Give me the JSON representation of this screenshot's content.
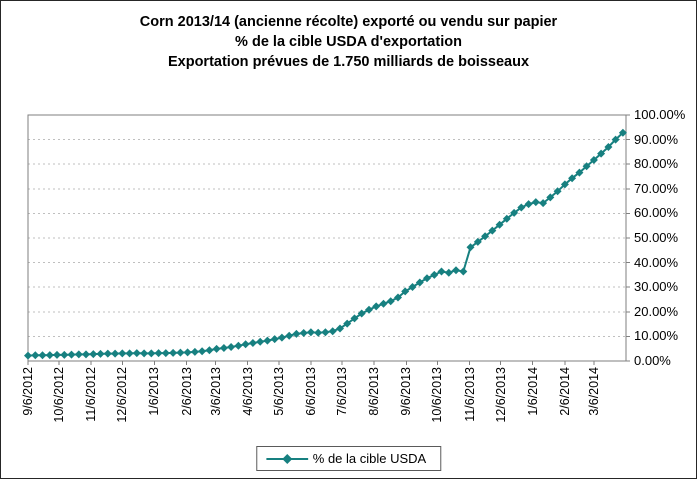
{
  "title": {
    "line1": "Corn 2013/14 (ancienne récolte) exporté ou vendu sur papier",
    "line2": "% de la cible USDA d'exportation",
    "line3": "Exportation prévues de 1.750 milliards de boisseaux"
  },
  "legend": {
    "label": "% de la cible USDA"
  },
  "colors": {
    "series": "#178080",
    "grid": "#bfbfbf",
    "axis": "#7f7f7f",
    "text": "#000000",
    "background": "#ffffff"
  },
  "chart_data": {
    "type": "line",
    "title": "Corn 2013/14 (ancienne récolte) exporté ou vendu sur papier",
    "subtitle1": "% de la cible USDA d'exportation",
    "subtitle2": "Exportation prévues de 1.750 milliards de boisseaux",
    "grid": "horizontal-dotted",
    "legend_position": "bottom-center",
    "y_axis_side": "right",
    "ylim": [
      0,
      100
    ],
    "y_ticks": [
      0,
      10,
      20,
      30,
      40,
      50,
      60,
      70,
      80,
      90,
      100
    ],
    "y_tick_labels": [
      "0.00%",
      "10.00%",
      "20.00%",
      "30.00%",
      "40.00%",
      "50.00%",
      "60.00%",
      "70.00%",
      "80.00%",
      "90.00%",
      "100.00%"
    ],
    "x_tick_labels": [
      "9/6/2012",
      "10/6/2012",
      "11/6/2012",
      "12/6/2012",
      "1/6/2013",
      "2/6/2013",
      "3/6/2013",
      "4/6/2013",
      "5/6/2013",
      "6/6/2013",
      "7/6/2013",
      "8/6/2013",
      "9/6/2013",
      "10/6/2013",
      "11/6/2013",
      "12/6/2013",
      "1/6/2014",
      "2/6/2014",
      "3/6/2014"
    ],
    "x_domain_end": "4/6/2014",
    "series": [
      {
        "name": "% de la cible USDA",
        "color": "#178080",
        "marker": "diamond",
        "x_dates": [
          "9/6/2012",
          "9/13/2012",
          "9/20/2012",
          "9/27/2012",
          "10/4/2012",
          "10/11/2012",
          "10/18/2012",
          "10/25/2012",
          "11/1/2012",
          "11/8/2012",
          "11/15/2012",
          "11/22/2012",
          "11/29/2012",
          "12/6/2012",
          "12/13/2012",
          "12/20/2012",
          "12/27/2012",
          "1/3/2013",
          "1/10/2013",
          "1/17/2013",
          "1/24/2013",
          "1/31/2013",
          "2/7/2013",
          "2/14/2013",
          "2/21/2013",
          "2/28/2013",
          "3/7/2013",
          "3/14/2013",
          "3/21/2013",
          "3/28/2013",
          "4/4/2013",
          "4/11/2013",
          "4/18/2013",
          "4/25/2013",
          "5/2/2013",
          "5/9/2013",
          "5/16/2013",
          "5/23/2013",
          "5/30/2013",
          "6/6/2013",
          "6/13/2013",
          "6/20/2013",
          "6/27/2013",
          "7/4/2013",
          "7/11/2013",
          "7/18/2013",
          "7/25/2013",
          "8/1/2013",
          "8/8/2013",
          "8/15/2013",
          "8/22/2013",
          "8/29/2013",
          "9/5/2013",
          "9/12/2013",
          "9/19/2013",
          "9/26/2013",
          "10/3/2013",
          "10/10/2013",
          "10/17/2013",
          "10/24/2013",
          "10/31/2013",
          "11/7/2013",
          "11/14/2013",
          "11/21/2013",
          "11/28/2013",
          "12/5/2013",
          "12/12/2013",
          "12/19/2013",
          "12/26/2013",
          "1/2/2014",
          "1/9/2014",
          "1/16/2014",
          "1/23/2014",
          "1/30/2014",
          "2/6/2014",
          "2/13/2014",
          "2/20/2014",
          "2/27/2014",
          "3/6/2014",
          "3/13/2014",
          "3/20/2014",
          "3/27/2014",
          "4/3/2014"
        ],
        "values": [
          2.2,
          2.3,
          2.3,
          2.4,
          2.5,
          2.5,
          2.6,
          2.7,
          2.7,
          2.8,
          2.9,
          3.0,
          3.0,
          3.1,
          3.1,
          3.2,
          3.1,
          3.1,
          3.2,
          3.2,
          3.3,
          3.4,
          3.5,
          3.7,
          4.0,
          4.4,
          4.9,
          5.3,
          5.7,
          6.2,
          6.8,
          7.3,
          7.8,
          8.3,
          8.9,
          9.5,
          10.3,
          11.0,
          11.4,
          11.7,
          11.5,
          11.7,
          12.1,
          13.2,
          15.2,
          17.3,
          19.3,
          20.8,
          22.2,
          23.3,
          24.3,
          25.8,
          28.3,
          30.1,
          31.9,
          33.6,
          35.0,
          36.4,
          35.9,
          36.9,
          36.4,
          46.2,
          48.4,
          50.7,
          53.0,
          55.4,
          57.8,
          60.2,
          62.4,
          63.8,
          64.6,
          64.2,
          66.5,
          69.0,
          71.8,
          74.3,
          76.6,
          79.2,
          81.7,
          84.3,
          87.0,
          90.0,
          92.8
        ]
      }
    ]
  }
}
